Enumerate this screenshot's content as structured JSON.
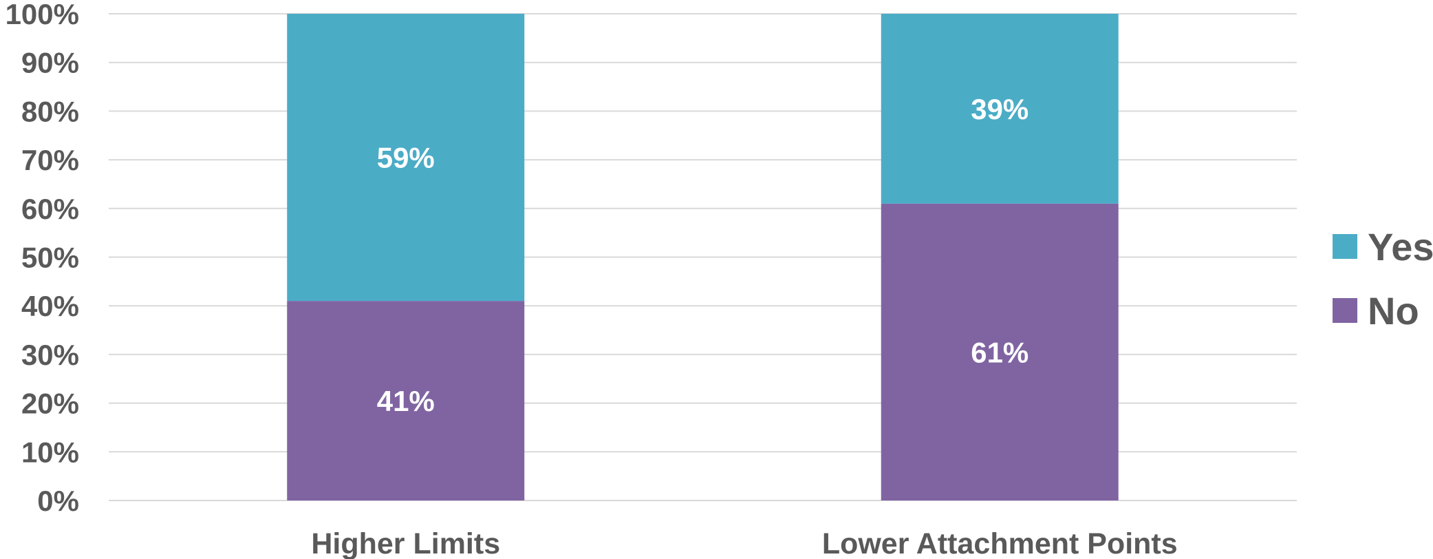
{
  "chart_data": {
    "type": "bar",
    "stacked": true,
    "categories": [
      "Higher Limits",
      "Lower Attachment Points"
    ],
    "series": [
      {
        "name": "No",
        "values": [
          41,
          61
        ],
        "color": "#8064a2"
      },
      {
        "name": "Yes",
        "values": [
          59,
          39
        ],
        "color": "#4bacc6"
      }
    ],
    "data_labels": [
      [
        "41%",
        "61%"
      ],
      [
        "59%",
        "39%"
      ]
    ],
    "y_ticks": [
      "0%",
      "10%",
      "20%",
      "30%",
      "40%",
      "50%",
      "60%",
      "70%",
      "80%",
      "90%",
      "100%"
    ],
    "ylim": [
      0,
      100
    ],
    "grid": true,
    "legend": {
      "position": "right",
      "entries": [
        "Yes",
        "No"
      ]
    }
  }
}
